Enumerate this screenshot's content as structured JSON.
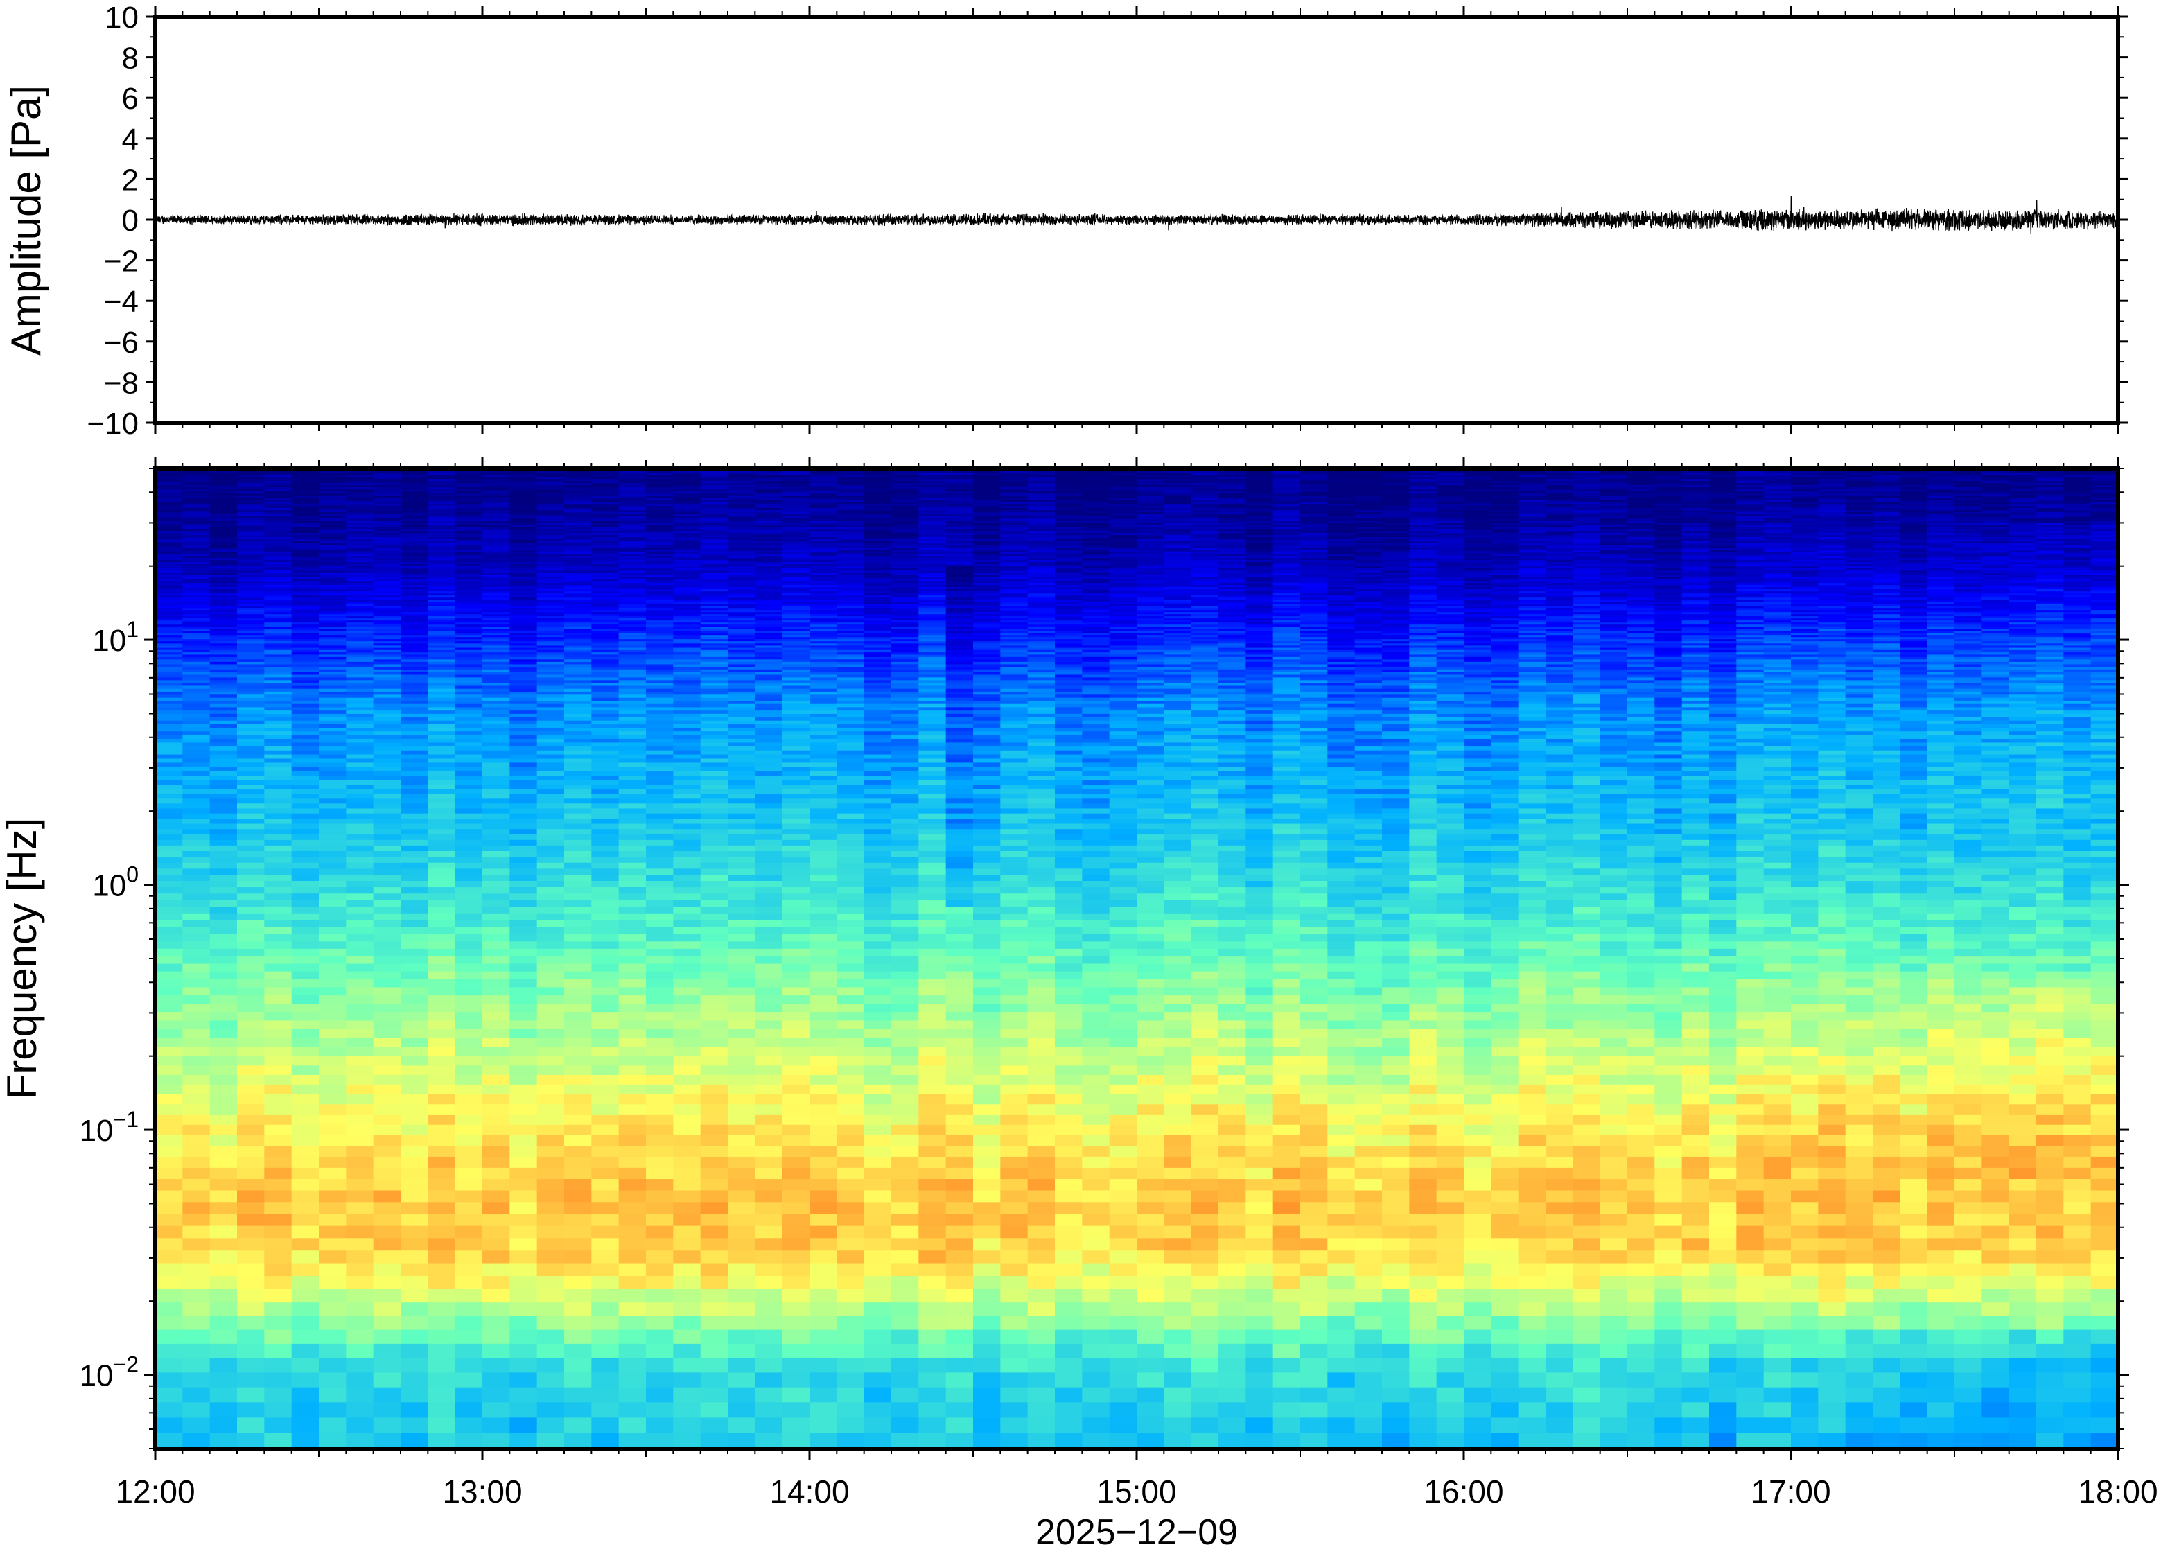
{
  "chart_data": [
    {
      "type": "line",
      "ylabel": "Amplitude [Pa]",
      "ylim": [
        -10,
        10
      ],
      "yticks": [
        10,
        8,
        6,
        4,
        2,
        0,
        -2,
        -4,
        -6,
        -8,
        -10
      ],
      "ytick_labels": [
        "10",
        "8",
        "6",
        "4",
        "2",
        "0",
        "−2",
        "−4",
        "−6",
        "−8",
        "−10"
      ],
      "xlim": [
        "12:00",
        "18:00"
      ],
      "grid": false,
      "series": [
        {
          "x": [
            "12:00",
            "12:30",
            "13:00",
            "13:30",
            "14:00",
            "14:30",
            "15:00",
            "15:30",
            "16:00",
            "16:30",
            "17:00",
            "17:30",
            "18:00"
          ],
          "envelope_pa": [
            0.25,
            0.3,
            0.35,
            0.28,
            0.28,
            0.35,
            0.28,
            0.3,
            0.3,
            0.5,
            0.6,
            0.6,
            0.5
          ],
          "color": "#000000"
        }
      ]
    },
    {
      "type": "heatmap",
      "ylabel": "Frequency [Hz]",
      "yscale": "log",
      "ylim": [
        0.005,
        50
      ],
      "yticks": [
        10,
        1,
        0.1,
        0.01
      ],
      "ytick_labels": [
        {
          "base": "10",
          "exp": "1"
        },
        {
          "base": "10",
          "exp": "0"
        },
        {
          "base": "10",
          "exp": "−1"
        },
        {
          "base": "10",
          "exp": "−2"
        }
      ],
      "xlim": [
        "12:00",
        "18:00"
      ],
      "xticks": [
        "12:00",
        "13:00",
        "14:00",
        "15:00",
        "16:00",
        "17:00",
        "18:00"
      ],
      "xlabel": "2025−12−09",
      "colormap": [
        "#000080",
        "#0000ff",
        "#00b0ff",
        "#60ffc0",
        "#ffff60",
        "#ff8020",
        "#c00000"
      ],
      "profile_freq_hz": [
        40,
        20,
        10,
        5,
        2,
        1,
        0.5,
        0.2,
        0.1,
        0.05,
        0.03,
        0.02,
        0.01,
        0.005
      ],
      "profile_level": [
        0.02,
        0.08,
        0.2,
        0.3,
        0.36,
        0.42,
        0.5,
        0.6,
        0.68,
        0.74,
        0.72,
        0.62,
        0.42,
        0.38
      ],
      "events": [
        {
          "time": "14:28",
          "level_drop": 0.08,
          "fmin_hz": 0.8,
          "fmax_hz": 20
        }
      ]
    }
  ]
}
